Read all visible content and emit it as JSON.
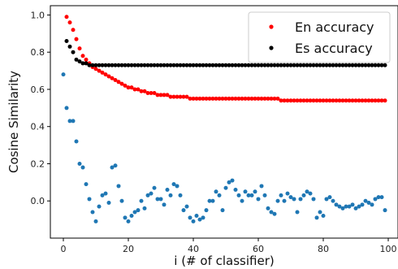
{
  "chart_data": {
    "type": "scatter",
    "xlabel": "i (# of classifier)",
    "ylabel": "Cosine Similarity",
    "xlim": [
      -4,
      103
    ],
    "ylim": [
      -0.2,
      1.05
    ],
    "xticks": [
      0,
      20,
      40,
      60,
      80,
      100
    ],
    "yticks": [
      0.0,
      0.2,
      0.4,
      0.6,
      0.8,
      1.0
    ],
    "ytick_labels": [
      "0.0",
      "0.2",
      "0.4",
      "0.6",
      "0.8",
      "1.0"
    ],
    "grid": false,
    "legend_position": "top-right",
    "series": [
      {
        "name": "",
        "color": "#1f77b4",
        "x": [
          0,
          1,
          2,
          3,
          4,
          5,
          6,
          7,
          8,
          9,
          10,
          11,
          12,
          13,
          14,
          15,
          16,
          17,
          18,
          19,
          20,
          21,
          22,
          23,
          24,
          25,
          26,
          27,
          28,
          29,
          30,
          31,
          32,
          33,
          34,
          35,
          36,
          37,
          38,
          39,
          40,
          41,
          42,
          43,
          44,
          45,
          46,
          47,
          48,
          49,
          50,
          51,
          52,
          53,
          54,
          55,
          56,
          57,
          58,
          59,
          60,
          61,
          62,
          63,
          64,
          65,
          66,
          67,
          68,
          69,
          70,
          71,
          72,
          73,
          74,
          75,
          76,
          77,
          78,
          79,
          80,
          81,
          82,
          83,
          84,
          85,
          86,
          87,
          88,
          89,
          90,
          91,
          92,
          93,
          94,
          95,
          96,
          97,
          98,
          99
        ],
        "y": [
          0.68,
          0.5,
          0.43,
          0.43,
          0.32,
          0.2,
          0.18,
          0.09,
          0.01,
          -0.06,
          -0.11,
          -0.03,
          0.03,
          0.04,
          -0.01,
          0.18,
          0.19,
          0.08,
          0.0,
          -0.09,
          -0.11,
          -0.08,
          -0.06,
          -0.05,
          0.0,
          -0.04,
          0.03,
          0.04,
          0.07,
          0.01,
          0.01,
          -0.02,
          0.06,
          0.03,
          0.09,
          0.08,
          0.03,
          -0.05,
          -0.03,
          -0.09,
          -0.11,
          -0.08,
          -0.1,
          -0.09,
          -0.05,
          0.0,
          0.0,
          0.05,
          0.03,
          -0.05,
          0.07,
          0.1,
          0.11,
          0.06,
          0.03,
          0.0,
          0.05,
          0.03,
          0.03,
          0.05,
          0.01,
          0.08,
          0.03,
          -0.04,
          -0.06,
          -0.07,
          0.0,
          0.03,
          0.0,
          0.04,
          0.02,
          0.01,
          -0.06,
          0.01,
          0.03,
          0.05,
          0.04,
          0.01,
          -0.09,
          -0.06,
          -0.08,
          0.01,
          0.02,
          0.0,
          -0.02,
          -0.03,
          -0.04,
          -0.03,
          -0.03,
          -0.02,
          -0.04,
          -0.03,
          -0.02,
          0.0,
          -0.01,
          -0.02,
          0.01,
          0.02,
          0.02,
          -0.05
        ]
      },
      {
        "name": "En accuracy",
        "color": "#ff0000",
        "x": [
          1,
          2,
          3,
          4,
          5,
          6,
          7,
          8,
          9,
          10,
          11,
          12,
          13,
          14,
          15,
          16,
          17,
          18,
          19,
          20,
          21,
          22,
          23,
          24,
          25,
          26,
          27,
          28,
          29,
          30,
          31,
          32,
          33,
          34,
          35,
          36,
          37,
          38,
          39,
          40,
          41,
          42,
          43,
          44,
          45,
          46,
          47,
          48,
          49,
          50,
          51,
          52,
          53,
          54,
          55,
          56,
          57,
          58,
          59,
          60,
          61,
          62,
          63,
          64,
          65,
          66,
          67,
          68,
          69,
          70,
          71,
          72,
          73,
          74,
          75,
          76,
          77,
          78,
          79,
          80,
          81,
          82,
          83,
          84,
          85,
          86,
          87,
          88,
          89,
          90,
          91,
          92,
          93,
          94,
          95,
          96,
          97,
          98,
          99
        ],
        "y": [
          0.99,
          0.96,
          0.92,
          0.87,
          0.82,
          0.78,
          0.76,
          0.74,
          0.72,
          0.71,
          0.7,
          0.69,
          0.68,
          0.67,
          0.66,
          0.65,
          0.64,
          0.63,
          0.62,
          0.61,
          0.61,
          0.6,
          0.6,
          0.59,
          0.59,
          0.58,
          0.58,
          0.58,
          0.57,
          0.57,
          0.57,
          0.57,
          0.56,
          0.56,
          0.56,
          0.56,
          0.56,
          0.56,
          0.55,
          0.55,
          0.55,
          0.55,
          0.55,
          0.55,
          0.55,
          0.55,
          0.55,
          0.55,
          0.55,
          0.55,
          0.55,
          0.55,
          0.55,
          0.55,
          0.55,
          0.55,
          0.55,
          0.55,
          0.55,
          0.55,
          0.55,
          0.55,
          0.55,
          0.55,
          0.55,
          0.55,
          0.54,
          0.54,
          0.54,
          0.54,
          0.54,
          0.54,
          0.54,
          0.54,
          0.54,
          0.54,
          0.54,
          0.54,
          0.54,
          0.54,
          0.54,
          0.54,
          0.54,
          0.54,
          0.54,
          0.54,
          0.54,
          0.54,
          0.54,
          0.54,
          0.54,
          0.54,
          0.54,
          0.54,
          0.54,
          0.54,
          0.54,
          0.54,
          0.54
        ]
      },
      {
        "name": "Es accuracy",
        "color": "#000000",
        "x": [
          1,
          2,
          3,
          4,
          5,
          6,
          7,
          8,
          9,
          10,
          11,
          12,
          13,
          14,
          15,
          16,
          17,
          18,
          19,
          20,
          21,
          22,
          23,
          24,
          25,
          26,
          27,
          28,
          29,
          30,
          31,
          32,
          33,
          34,
          35,
          36,
          37,
          38,
          39,
          40,
          41,
          42,
          43,
          44,
          45,
          46,
          47,
          48,
          49,
          50,
          51,
          52,
          53,
          54,
          55,
          56,
          57,
          58,
          59,
          60,
          61,
          62,
          63,
          64,
          65,
          66,
          67,
          68,
          69,
          70,
          71,
          72,
          73,
          74,
          75,
          76,
          77,
          78,
          79,
          80,
          81,
          82,
          83,
          84,
          85,
          86,
          87,
          88,
          89,
          90,
          91,
          92,
          93,
          94,
          95,
          96,
          97,
          98,
          99
        ],
        "y": [
          0.86,
          0.83,
          0.8,
          0.76,
          0.75,
          0.74,
          0.74,
          0.73,
          0.73,
          0.73,
          0.73,
          0.73,
          0.73,
          0.73,
          0.73,
          0.73,
          0.73,
          0.73,
          0.73,
          0.73,
          0.73,
          0.73,
          0.73,
          0.73,
          0.73,
          0.73,
          0.73,
          0.73,
          0.73,
          0.73,
          0.73,
          0.73,
          0.73,
          0.73,
          0.73,
          0.73,
          0.73,
          0.73,
          0.73,
          0.73,
          0.73,
          0.73,
          0.73,
          0.73,
          0.73,
          0.73,
          0.73,
          0.73,
          0.73,
          0.73,
          0.73,
          0.73,
          0.73,
          0.73,
          0.73,
          0.73,
          0.73,
          0.73,
          0.73,
          0.73,
          0.73,
          0.73,
          0.73,
          0.73,
          0.73,
          0.73,
          0.73,
          0.73,
          0.73,
          0.73,
          0.73,
          0.73,
          0.73,
          0.73,
          0.73,
          0.73,
          0.73,
          0.73,
          0.73,
          0.73,
          0.73,
          0.73,
          0.73,
          0.73,
          0.73,
          0.73,
          0.73,
          0.73,
          0.73,
          0.73,
          0.73,
          0.73,
          0.73,
          0.73,
          0.73,
          0.73,
          0.73,
          0.73,
          0.73
        ]
      }
    ]
  }
}
